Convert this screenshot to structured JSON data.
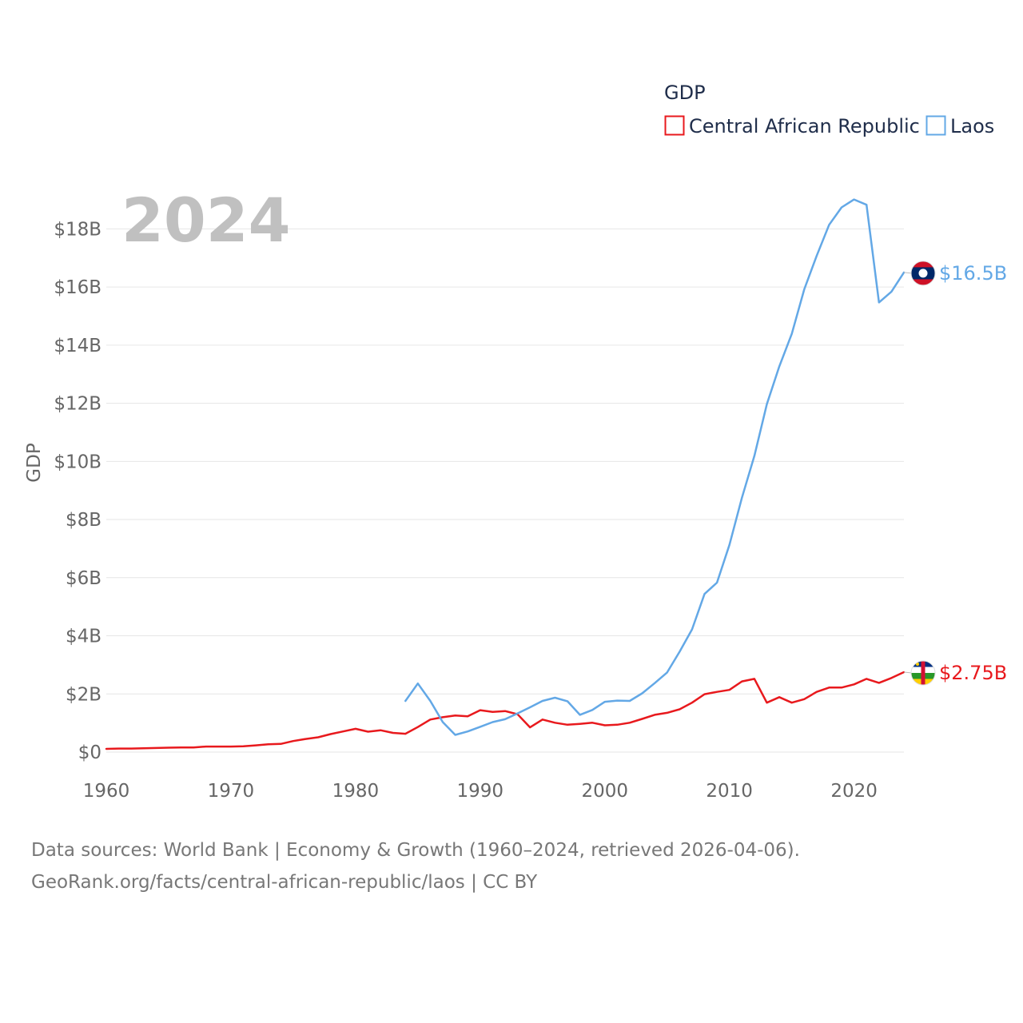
{
  "chart_data": {
    "type": "line",
    "title": "GDP",
    "ylabel": "GDP",
    "xlabel": "",
    "current_year": "2024",
    "xlim": [
      1960,
      2024
    ],
    "ylim": [
      0,
      19000000000
    ],
    "x_ticks": [
      1960,
      1970,
      1980,
      1990,
      2000,
      2010,
      2020
    ],
    "y_ticks": [
      {
        "value": 0,
        "label": "$0"
      },
      {
        "value": 2000000000,
        "label": "$2B"
      },
      {
        "value": 4000000000,
        "label": "$4B"
      },
      {
        "value": 6000000000,
        "label": "$6B"
      },
      {
        "value": 8000000000,
        "label": "$8B"
      },
      {
        "value": 10000000000,
        "label": "$10B"
      },
      {
        "value": 12000000000,
        "label": "$12B"
      },
      {
        "value": 14000000000,
        "label": "$14B"
      },
      {
        "value": 16000000000,
        "label": "$16B"
      },
      {
        "value": 18000000000,
        "label": "$18B"
      }
    ],
    "legend_position": "top-right",
    "grid": true,
    "series": [
      {
        "name": "Central African Republic",
        "color": "#e8191d",
        "end_label": "$2.75B",
        "flag": "central-african-republic-flag-icon",
        "x": [
          1960,
          1961,
          1962,
          1963,
          1964,
          1965,
          1966,
          1967,
          1968,
          1969,
          1970,
          1971,
          1972,
          1973,
          1974,
          1975,
          1976,
          1977,
          1978,
          1979,
          1980,
          1981,
          1982,
          1983,
          1984,
          1985,
          1986,
          1987,
          1988,
          1989,
          1990,
          1991,
          1992,
          1993,
          1994,
          1995,
          1996,
          1997,
          1998,
          1999,
          2000,
          2001,
          2002,
          2003,
          2004,
          2005,
          2006,
          2007,
          2008,
          2009,
          2010,
          2011,
          2012,
          2013,
          2014,
          2015,
          2016,
          2017,
          2018,
          2019,
          2020,
          2021,
          2022,
          2023,
          2024
        ],
        "values": [
          110000000.0,
          120000000.0,
          120000000.0,
          130000000.0,
          140000000.0,
          150000000.0,
          160000000.0,
          160000000.0,
          190000000.0,
          190000000.0,
          190000000.0,
          200000000.0,
          230000000.0,
          270000000.0,
          280000000.0,
          380000000.0,
          450000000.0,
          510000000.0,
          620000000.0,
          710000000.0,
          800000000.0,
          700000000.0,
          750000000.0,
          660000000.0,
          630000000.0,
          860000000.0,
          1120000000.0,
          1200000000.0,
          1260000000.0,
          1230000000.0,
          1440000000.0,
          1380000000.0,
          1410000000.0,
          1300000000.0,
          850000000.0,
          1120000000.0,
          1010000000.0,
          940000000.0,
          970000000.0,
          1010000000.0,
          920000000.0,
          940000000.0,
          1010000000.0,
          1140000000.0,
          1280000000.0,
          1350000000.0,
          1470000000.0,
          1700000000.0,
          1990000000.0,
          2070000000.0,
          2140000000.0,
          2430000000.0,
          2520000000.0,
          1700000000.0,
          1890000000.0,
          1700000000.0,
          1820000000.0,
          2070000000.0,
          2220000000.0,
          2220000000.0,
          2330000000.0,
          2520000000.0,
          2380000000.0,
          2550000000.0,
          2750000000.0
        ]
      },
      {
        "name": "Laos",
        "color": "#63a8e6",
        "end_label": "$16.5B",
        "flag": "laos-flag-icon",
        "x": [
          1984,
          1985,
          1986,
          1987,
          1988,
          1989,
          1990,
          1991,
          1992,
          1993,
          1994,
          1995,
          1996,
          1997,
          1998,
          1999,
          2000,
          2001,
          2002,
          2003,
          2004,
          2005,
          2006,
          2007,
          2008,
          2009,
          2010,
          2011,
          2012,
          2013,
          2014,
          2015,
          2016,
          2017,
          2018,
          2019,
          2020,
          2021,
          2022,
          2023,
          2024
        ],
        "values": [
          1760000000.0,
          2360000000.0,
          1760000000.0,
          1030000000.0,
          590000000.0,
          710000000.0,
          870000000.0,
          1030000000.0,
          1130000000.0,
          1330000000.0,
          1540000000.0,
          1760000000.0,
          1870000000.0,
          1750000000.0,
          1280000000.0,
          1450000000.0,
          1730000000.0,
          1770000000.0,
          1760000000.0,
          2020000000.0,
          2370000000.0,
          2740000000.0,
          3450000000.0,
          4220000000.0,
          5440000000.0,
          5830000000.0,
          7130000000.0,
          8750000000.0,
          10190000000.0,
          11970000000.0,
          13270000000.0,
          14390000000.0,
          15920000000.0,
          17070000000.0,
          18140000000.0,
          18740000000.0,
          19010000000.0,
          18830000000.0,
          15470000000.0,
          15840000000.0,
          16500000000.0
        ]
      }
    ]
  },
  "footer": {
    "line1": "Data sources: World Bank | Economy & Growth (1960–2024, retrieved 2026-04-06).",
    "line2": "GeoRank.org/facts/central-african-republic/laos | CC BY"
  }
}
